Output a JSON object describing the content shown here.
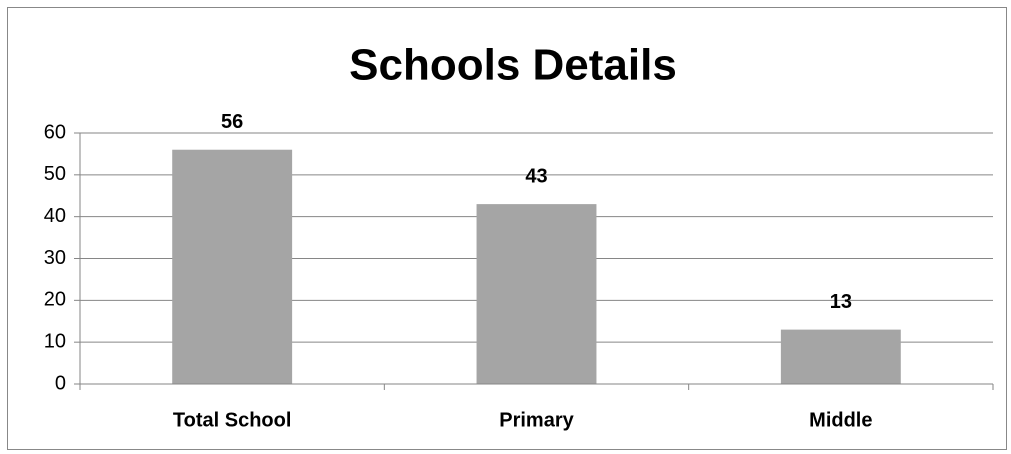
{
  "chart_data": {
    "type": "bar",
    "title": "Schools Details",
    "categories": [
      "Total School",
      "Primary",
      "Middle"
    ],
    "values": [
      56,
      43,
      13
    ],
    "color": "#a5a5a5",
    "ylim": [
      0,
      60
    ],
    "yticks": [
      0,
      10,
      20,
      30,
      40,
      50,
      60
    ],
    "grid": true
  }
}
